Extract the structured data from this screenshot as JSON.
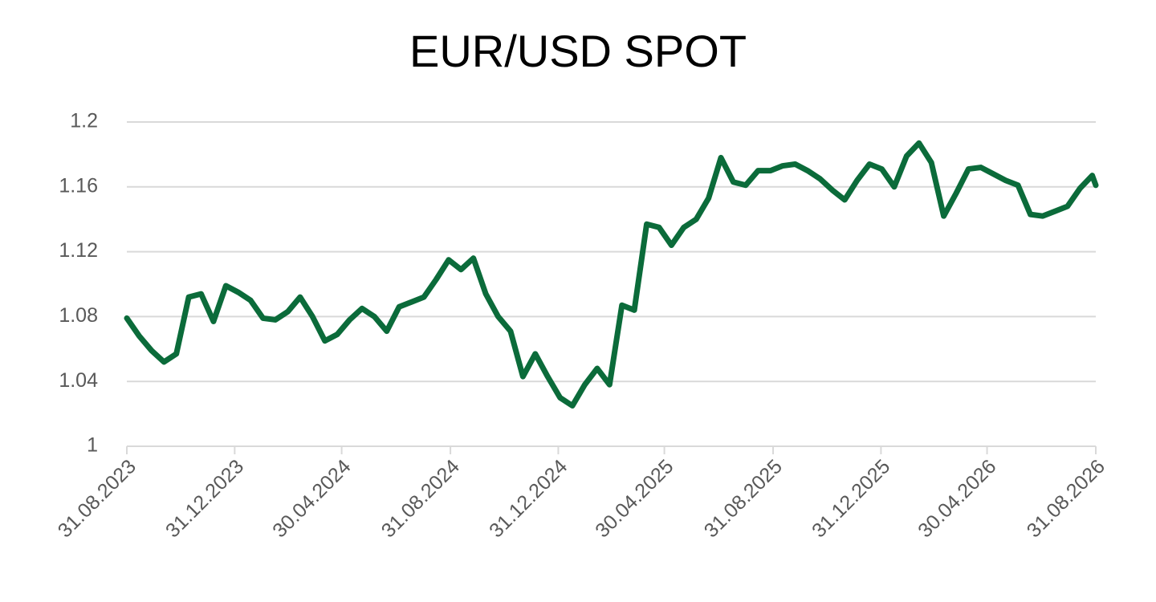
{
  "chart_data": {
    "type": "line",
    "title": "EUR/USD SPOT",
    "x": [
      "31.08.2023",
      "14.09.2023",
      "28.09.2023",
      "12.10.2023",
      "26.10.2023",
      "09.11.2023",
      "23.11.2023",
      "07.12.2023",
      "21.12.2023",
      "04.01.2024",
      "18.01.2024",
      "01.02.2024",
      "15.02.2024",
      "29.02.2024",
      "14.03.2024",
      "28.03.2024",
      "11.04.2024",
      "25.04.2024",
      "09.05.2024",
      "23.05.2024",
      "06.06.2024",
      "20.06.2024",
      "04.07.2024",
      "18.07.2024",
      "01.08.2024",
      "15.08.2024",
      "29.08.2024",
      "12.09.2024",
      "26.09.2024",
      "10.10.2024",
      "24.10.2024",
      "07.11.2024",
      "21.11.2024",
      "05.12.2024",
      "19.12.2024",
      "02.01.2025",
      "16.01.2025",
      "30.01.2025",
      "13.02.2025",
      "27.02.2025",
      "13.03.2025",
      "27.03.2025",
      "10.04.2025",
      "24.04.2025",
      "08.05.2025",
      "22.05.2025",
      "05.06.2025",
      "19.06.2025",
      "03.07.2025",
      "17.07.2025",
      "31.07.2025",
      "14.08.2025",
      "28.08.2025",
      "11.09.2025",
      "25.09.2025",
      "09.10.2025",
      "23.10.2025",
      "06.11.2025",
      "20.11.2025",
      "04.12.2025",
      "18.12.2025",
      "01.01.2026",
      "15.01.2026",
      "29.01.2026",
      "12.02.2026",
      "26.02.2026",
      "12.03.2026",
      "26.03.2026",
      "09.04.2026",
      "23.04.2026",
      "07.05.2026",
      "21.05.2026",
      "04.06.2026",
      "18.06.2026",
      "02.07.2026",
      "16.07.2026",
      "30.07.2026",
      "13.08.2026",
      "27.08.2026",
      "31.08.2026"
    ],
    "values": [
      1.079,
      1.068,
      1.059,
      1.052,
      1.057,
      1.092,
      1.094,
      1.077,
      1.099,
      1.095,
      1.09,
      1.079,
      1.078,
      1.083,
      1.092,
      1.08,
      1.065,
      1.069,
      1.078,
      1.085,
      1.08,
      1.071,
      1.086,
      1.089,
      1.092,
      1.103,
      1.115,
      1.109,
      1.116,
      1.094,
      1.08,
      1.071,
      1.043,
      1.057,
      1.043,
      1.03,
      1.025,
      1.038,
      1.048,
      1.038,
      1.087,
      1.084,
      1.137,
      1.135,
      1.124,
      1.135,
      1.14,
      1.153,
      1.178,
      1.163,
      1.161,
      1.17,
      1.17,
      1.173,
      1.174,
      1.17,
      1.165,
      1.158,
      1.152,
      1.164,
      1.174,
      1.171,
      1.16,
      1.179,
      1.187,
      1.175,
      1.142,
      1.156,
      1.171,
      1.172,
      1.168,
      1.164,
      1.161,
      1.143,
      1.142,
      1.145,
      1.148,
      1.159,
      1.167,
      1.161
    ],
    "color": "#0b6b3a",
    "xlim": [
      "31.08.2023",
      "31.08.2026"
    ],
    "xticks": [
      "31.08.2023",
      "31.12.2023",
      "30.04.2024",
      "31.08.2024",
      "31.12.2024",
      "30.04.2025",
      "31.08.2025",
      "31.12.2025",
      "30.04.2026",
      "31.08.2026"
    ],
    "ylim": [
      1,
      1.2
    ],
    "yticks": [
      1,
      1.04,
      1.08,
      1.12,
      1.16,
      1.2
    ],
    "grid": true
  }
}
